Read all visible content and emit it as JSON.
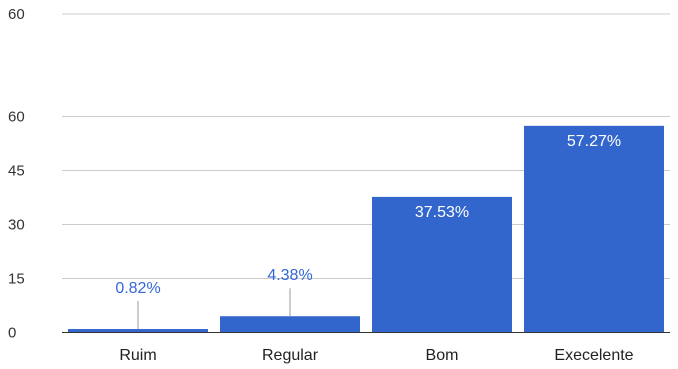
{
  "colors": {
    "bar": "#3366cc",
    "grid": "#cccccc",
    "leader": "#999999",
    "label_outside": "#3367d6",
    "label_inside": "#ffffff"
  },
  "chart_data": {
    "type": "bar",
    "title": "",
    "xlabel": "",
    "ylabel": "",
    "categories": [
      "Ruim",
      "Regular",
      "Bom",
      "Execelente"
    ],
    "values": [
      0.82,
      4.38,
      37.53,
      57.27
    ],
    "data_labels": [
      "0.82%",
      "4.38%",
      "37.53%",
      "57.27%"
    ],
    "ylim": [
      0,
      60
    ],
    "yticks": [
      0,
      15,
      30,
      45,
      60
    ],
    "extra_top_tick": "60",
    "grid": true,
    "legend": "none"
  }
}
